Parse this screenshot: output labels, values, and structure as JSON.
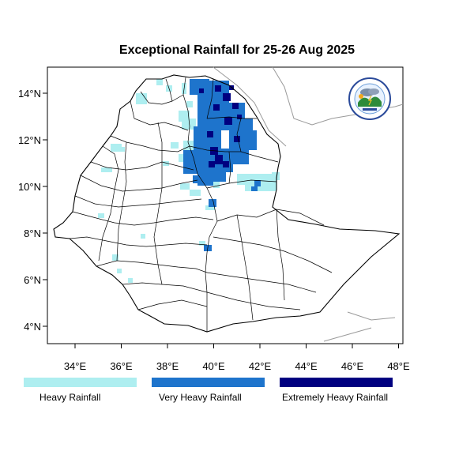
{
  "title": "Exceptional Rainfall for 25-26 Aug 2025",
  "axes": {
    "lon_ticks": [
      "34°E",
      "36°E",
      "38°E",
      "40°E",
      "42°E",
      "44°E",
      "46°E",
      "48°E"
    ],
    "lat_ticks": [
      "14°N",
      "12°N",
      "10°N",
      "8°N",
      "6°N",
      "4°N"
    ]
  },
  "legend": [
    {
      "label": "Heavy Rainfall",
      "color": "#aeeef0"
    },
    {
      "label": "Very Heavy Rainfall",
      "color": "#1e74cc"
    },
    {
      "label": "Extremely Heavy Rainfall",
      "color": "#000080"
    }
  ],
  "logo": {
    "icon": "ethiopian-meteorology-institute-logo"
  },
  "colors": {
    "heavy": "#aeeef0",
    "very_heavy": "#1e74cc",
    "extreme": "#000080"
  }
}
